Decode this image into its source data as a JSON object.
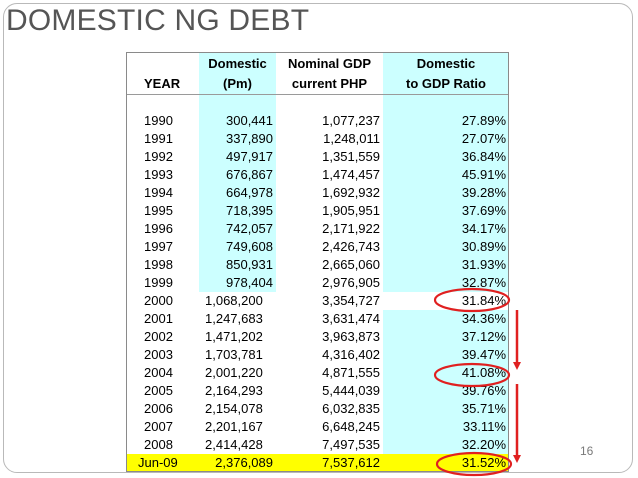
{
  "slide": {
    "title": "DOMESTIC NG DEBT",
    "page_number": "16"
  },
  "table": {
    "headers": {
      "year": "YEAR",
      "domestic_line1": "Domestic",
      "domestic_line2": "(Pm)",
      "gdp_line1": "Nominal GDP",
      "gdp_line2": "current PHP",
      "ratio_line1": "Domestic",
      "ratio_line2": "to GDP Ratio"
    },
    "rows": [
      {
        "year": "1990",
        "domestic": "300,441",
        "gdp": "1,077,237",
        "ratio": "27.89%"
      },
      {
        "year": "1991",
        "domestic": "337,890",
        "gdp": "1,248,011",
        "ratio": "27.07%"
      },
      {
        "year": "1992",
        "domestic": "497,917",
        "gdp": "1,351,559",
        "ratio": "36.84%"
      },
      {
        "year": "1993",
        "domestic": "676,867",
        "gdp": "1,474,457",
        "ratio": "45.91%"
      },
      {
        "year": "1994",
        "domestic": "664,978",
        "gdp": "1,692,932",
        "ratio": "39.28%"
      },
      {
        "year": "1995",
        "domestic": "718,395",
        "gdp": "1,905,951",
        "ratio": "37.69%"
      },
      {
        "year": "1996",
        "domestic": "742,057",
        "gdp": "2,171,922",
        "ratio": "34.17%"
      },
      {
        "year": "1997",
        "domestic": "749,608",
        "gdp": "2,426,743",
        "ratio": "30.89%"
      },
      {
        "year": "1998",
        "domestic": "850,931",
        "gdp": "2,665,060",
        "ratio": "31.93%"
      },
      {
        "year": "1999",
        "domestic": "978,404",
        "gdp": "2,976,905",
        "ratio": "32.87%"
      },
      {
        "year": "2000",
        "domestic": "1,068,200",
        "gdp": "3,354,727",
        "ratio": "31.84%"
      },
      {
        "year": "2001",
        "domestic": "1,247,683",
        "gdp": "3,631,474",
        "ratio": "34.36%"
      },
      {
        "year": "2002",
        "domestic": "1,471,202",
        "gdp": "3,963,873",
        "ratio": "37.12%"
      },
      {
        "year": "2003",
        "domestic": "1,703,781",
        "gdp": "4,316,402",
        "ratio": "39.47%"
      },
      {
        "year": "2004",
        "domestic": "2,001,220",
        "gdp": "4,871,555",
        "ratio": "41.08%"
      },
      {
        "year": "2005",
        "domestic": "2,164,293",
        "gdp": "5,444,039",
        "ratio": "39.76%"
      },
      {
        "year": "2006",
        "domestic": "2,154,078",
        "gdp": "6,032,835",
        "ratio": "35.71%"
      },
      {
        "year": "2007",
        "domestic": "2,201,167",
        "gdp": "6,648,245",
        "ratio": "33.11%"
      },
      {
        "year": "2008",
        "domestic": "2,414,428",
        "gdp": "7,497,535",
        "ratio": "32.20%"
      },
      {
        "year": "Jun-09",
        "domestic": "2,376,089",
        "gdp": "7,537,612",
        "ratio": "31.52%"
      }
    ]
  },
  "colors": {
    "highlight_cyan": "#ccffff",
    "highlight_yellow": "#ffff00",
    "annotation_red": "#e02020",
    "title_gray": "#555555"
  }
}
